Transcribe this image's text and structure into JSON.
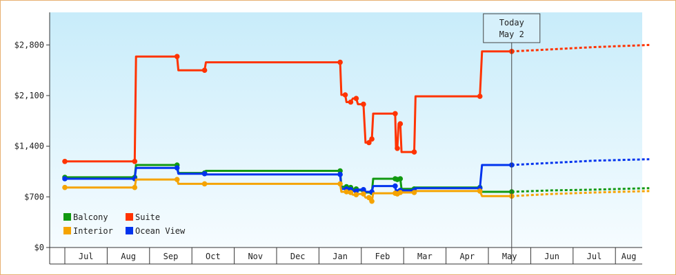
{
  "chart_data": {
    "type": "line",
    "y_ticks": [
      "$0",
      "$700",
      "$1,400",
      "$2,100",
      "$2,800"
    ],
    "y_tick_values": [
      0,
      700,
      1400,
      2100,
      2800
    ],
    "ylim": [
      0,
      3250
    ],
    "months": [
      "Jul",
      "Aug",
      "Sep",
      "Oct",
      "Nov",
      "Dec",
      "Jan",
      "Feb",
      "Mar",
      "Apr",
      "May",
      "Jun",
      "Jul",
      "Aug"
    ],
    "today": {
      "line1": "Today",
      "line2": "May 2",
      "t": 10.55
    },
    "colors": {
      "Balcony": "#119911",
      "Suite": "#ff3300",
      "Interior": "#f5a300",
      "Ocean View": "#0033ee"
    },
    "legend": [
      "Balcony",
      "Suite",
      "Interior",
      "Ocean View"
    ],
    "series": [
      {
        "name": "Suite",
        "points": [
          [
            0,
            1190
          ],
          [
            1.65,
            1190
          ],
          [
            1.68,
            2640
          ],
          [
            2.65,
            2640
          ],
          [
            2.68,
            2450
          ],
          [
            3.3,
            2450
          ],
          [
            3.33,
            2560
          ],
          [
            6.5,
            2560
          ],
          [
            6.53,
            2110
          ],
          [
            6.62,
            2110
          ],
          [
            6.65,
            2010
          ],
          [
            6.75,
            2010
          ],
          [
            6.8,
            2060
          ],
          [
            6.88,
            2060
          ],
          [
            6.92,
            1980
          ],
          [
            7.05,
            1980
          ],
          [
            7.1,
            1450
          ],
          [
            7.18,
            1450
          ],
          [
            7.22,
            1500
          ],
          [
            7.25,
            1500
          ],
          [
            7.28,
            1850
          ],
          [
            7.8,
            1850
          ],
          [
            7.82,
            1370
          ],
          [
            7.85,
            1370
          ],
          [
            7.88,
            1710
          ],
          [
            7.92,
            1710
          ],
          [
            7.95,
            1320
          ],
          [
            8.25,
            1320
          ],
          [
            8.28,
            2090
          ],
          [
            9.8,
            2090
          ],
          [
            9.85,
            2710
          ],
          [
            10.55,
            2710
          ]
        ],
        "forecast": [
          [
            10.55,
            2710
          ],
          [
            11.5,
            2740
          ],
          [
            12.5,
            2770
          ],
          [
            13.8,
            2800
          ]
        ]
      },
      {
        "name": "Balcony",
        "points": [
          [
            0,
            970
          ],
          [
            1.65,
            970
          ],
          [
            1.68,
            1140
          ],
          [
            2.65,
            1140
          ],
          [
            2.68,
            1030
          ],
          [
            3.3,
            1030
          ],
          [
            3.33,
            1060
          ],
          [
            6.5,
            1060
          ],
          [
            6.53,
            840
          ],
          [
            6.65,
            840
          ],
          [
            6.7,
            830
          ],
          [
            6.75,
            830
          ],
          [
            6.8,
            810
          ],
          [
            6.88,
            810
          ],
          [
            6.92,
            790
          ],
          [
            7.05,
            790
          ],
          [
            7.1,
            760
          ],
          [
            7.25,
            760
          ],
          [
            7.28,
            950
          ],
          [
            7.8,
            950
          ],
          [
            7.82,
            940
          ],
          [
            7.85,
            940
          ],
          [
            7.88,
            950
          ],
          [
            7.92,
            950
          ],
          [
            7.95,
            810
          ],
          [
            8.25,
            810
          ],
          [
            8.28,
            830
          ],
          [
            9.8,
            830
          ],
          [
            9.85,
            770
          ],
          [
            10.55,
            770
          ]
        ],
        "forecast": [
          [
            10.55,
            770
          ],
          [
            11.5,
            790
          ],
          [
            12.5,
            800
          ],
          [
            13.8,
            820
          ]
        ]
      },
      {
        "name": "Ocean View",
        "points": [
          [
            0,
            950
          ],
          [
            1.65,
            950
          ],
          [
            1.68,
            1100
          ],
          [
            2.65,
            1100
          ],
          [
            2.68,
            1020
          ],
          [
            3.3,
            1020
          ],
          [
            3.33,
            1010
          ],
          [
            6.5,
            1010
          ],
          [
            6.53,
            810
          ],
          [
            6.65,
            810
          ],
          [
            6.7,
            800
          ],
          [
            6.75,
            800
          ],
          [
            6.8,
            780
          ],
          [
            6.88,
            780
          ],
          [
            6.92,
            800
          ],
          [
            7.05,
            800
          ],
          [
            7.1,
            770
          ],
          [
            7.25,
            770
          ],
          [
            7.28,
            850
          ],
          [
            7.8,
            850
          ],
          [
            7.82,
            770
          ],
          [
            7.85,
            770
          ],
          [
            7.88,
            790
          ],
          [
            7.92,
            790
          ],
          [
            7.95,
            790
          ],
          [
            8.25,
            790
          ],
          [
            8.28,
            820
          ],
          [
            9.8,
            820
          ],
          [
            9.85,
            1140
          ],
          [
            10.55,
            1140
          ]
        ],
        "forecast": [
          [
            10.55,
            1140
          ],
          [
            11.5,
            1170
          ],
          [
            12.5,
            1200
          ],
          [
            13.8,
            1220
          ]
        ]
      },
      {
        "name": "Interior",
        "points": [
          [
            0,
            830
          ],
          [
            1.65,
            830
          ],
          [
            1.68,
            940
          ],
          [
            2.65,
            940
          ],
          [
            2.68,
            880
          ],
          [
            3.3,
            880
          ],
          [
            3.33,
            880
          ],
          [
            6.5,
            880
          ],
          [
            6.53,
            770
          ],
          [
            6.65,
            770
          ],
          [
            6.7,
            760
          ],
          [
            6.75,
            760
          ],
          [
            6.8,
            730
          ],
          [
            6.88,
            730
          ],
          [
            6.92,
            740
          ],
          [
            7.05,
            740
          ],
          [
            7.1,
            690
          ],
          [
            7.18,
            690
          ],
          [
            7.22,
            640
          ],
          [
            7.25,
            640
          ],
          [
            7.28,
            750
          ],
          [
            7.8,
            750
          ],
          [
            7.82,
            740
          ],
          [
            7.85,
            740
          ],
          [
            7.88,
            760
          ],
          [
            7.92,
            760
          ],
          [
            7.95,
            760
          ],
          [
            8.25,
            760
          ],
          [
            8.28,
            780
          ],
          [
            9.8,
            780
          ],
          [
            9.85,
            710
          ],
          [
            10.55,
            710
          ]
        ],
        "forecast": [
          [
            10.55,
            710
          ],
          [
            11.5,
            740
          ],
          [
            12.5,
            760
          ],
          [
            13.8,
            780
          ]
        ]
      }
    ]
  }
}
